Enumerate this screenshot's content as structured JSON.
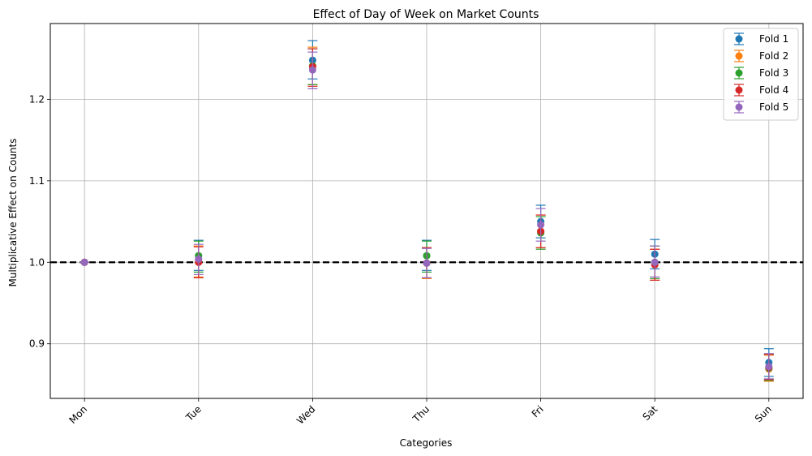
{
  "chart_data": {
    "type": "scatter",
    "title": "Effect of Day of Week on Market Counts",
    "xlabel": "Categories",
    "ylabel": "Multiplicative Effect on Counts",
    "categories": [
      "Mon",
      "Tue",
      "Wed",
      "Thu",
      "Fri",
      "Sat",
      "Sun"
    ],
    "ylim": [
      0.833,
      1.293
    ],
    "yticks": [
      "0.9",
      "1.0",
      "1.1",
      "1.2"
    ],
    "grid": true,
    "legend_position": "top-right",
    "reference_line": {
      "y": 1.0,
      "style": "dashed",
      "color": "#000000"
    },
    "series": [
      {
        "name": "Fold 1",
        "color": "#1f77b4",
        "values": [
          1.0,
          1.008,
          1.248,
          1.008,
          1.05,
          1.01,
          0.877
        ],
        "lower": [
          1.0,
          0.99,
          1.225,
          0.99,
          1.03,
          0.992,
          0.86
        ],
        "upper": [
          1.0,
          1.027,
          1.272,
          1.027,
          1.07,
          1.028,
          0.894
        ]
      },
      {
        "name": "Fold 2",
        "color": "#ff7f0e",
        "values": [
          1.0,
          1.001,
          1.241,
          0.999,
          1.038,
          0.997,
          0.869
        ],
        "lower": [
          1.0,
          0.982,
          1.218,
          0.98,
          1.018,
          0.978,
          0.854
        ],
        "upper": [
          1.0,
          1.02,
          1.264,
          1.018,
          1.058,
          1.016,
          0.886
        ]
      },
      {
        "name": "Fold 3",
        "color": "#2ca02c",
        "values": [
          1.0,
          1.008,
          1.241,
          1.008,
          1.036,
          1.0,
          0.87
        ],
        "lower": [
          1.0,
          0.988,
          1.218,
          0.988,
          1.016,
          0.98,
          0.855
        ],
        "upper": [
          1.0,
          1.026,
          1.262,
          1.026,
          1.056,
          1.02,
          0.887
        ]
      },
      {
        "name": "Fold 4",
        "color": "#d62728",
        "values": [
          1.0,
          1.0,
          1.24,
          0.999,
          1.038,
          0.997,
          0.871
        ],
        "lower": [
          1.0,
          0.981,
          1.216,
          0.981,
          1.018,
          0.978,
          0.856
        ],
        "upper": [
          1.0,
          1.019,
          1.262,
          1.018,
          1.058,
          1.016,
          0.887
        ]
      },
      {
        "name": "Fold 5",
        "color": "#9467bd",
        "values": [
          1.0,
          1.004,
          1.236,
          0.999,
          1.046,
          1.0,
          0.872
        ],
        "lower": [
          1.0,
          0.985,
          1.213,
          0.981,
          1.026,
          0.982,
          0.857
        ],
        "upper": [
          1.0,
          1.022,
          1.258,
          1.017,
          1.066,
          1.02,
          0.888
        ]
      }
    ]
  }
}
